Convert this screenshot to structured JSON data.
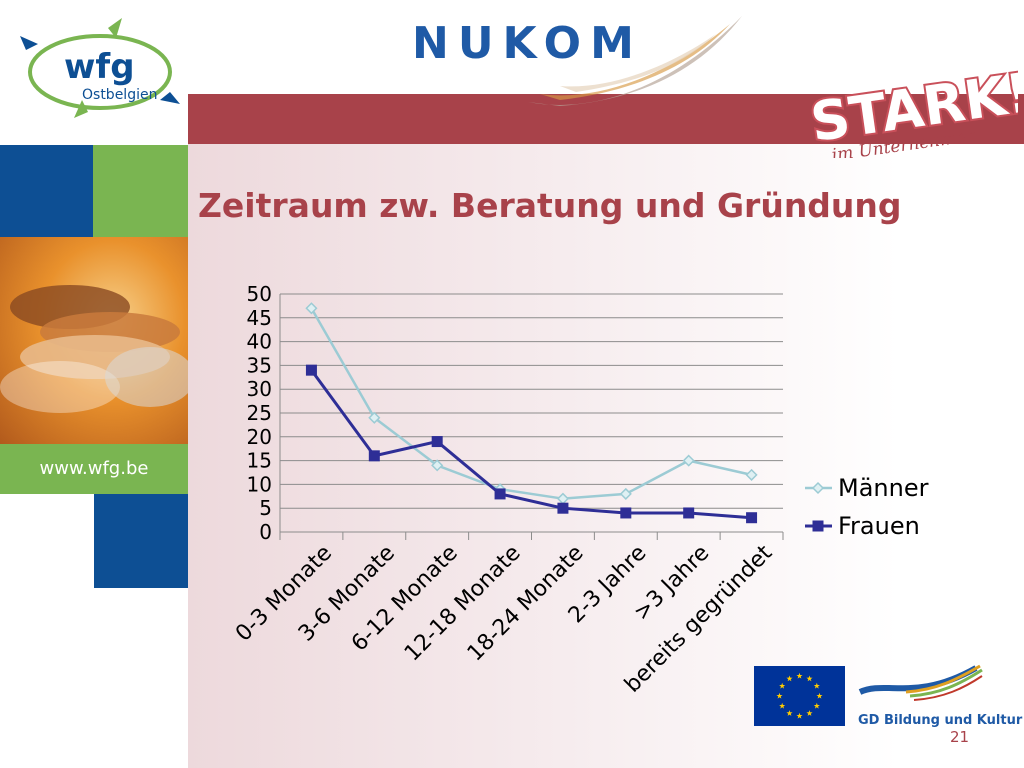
{
  "header": {
    "brand": "NUKOM",
    "logo_left": {
      "name": "wfg",
      "sub": "Ostbelgien"
    },
    "logo_right": {
      "main": "STARK!",
      "sub": "im Unternehmen"
    }
  },
  "sidebar": {
    "url": "www.wfg.be"
  },
  "slide": {
    "title": "Zeitraum zw. Beratung und Gründung",
    "page_number": "21"
  },
  "footer": {
    "partner": "GD Bildung und Kultur"
  },
  "colors": {
    "accent_red": "#a8424a",
    "brand_blue": "#1f5aa6",
    "block_blue": "#0d4f94",
    "block_green": "#7ab551",
    "series_maenner": "#9ccbd4",
    "series_frauen": "#2e2e96"
  },
  "chart_data": {
    "type": "line",
    "title": "",
    "xlabel": "",
    "ylabel": "",
    "ylim": [
      0,
      50
    ],
    "yticks": [
      0,
      5,
      10,
      15,
      20,
      25,
      30,
      35,
      40,
      45,
      50
    ],
    "grid": true,
    "legend": "right",
    "categories": [
      "0-3 Monate",
      "3-6 Monate",
      "6-12 Monate",
      "12-18 Monate",
      "18-24 Monate",
      "2-3 Jahre",
      ">3 Jahre",
      "bereits gegründet"
    ],
    "series": [
      {
        "name": "Männer",
        "values": [
          47,
          24,
          14,
          9,
          7,
          8,
          15,
          12
        ],
        "marker": "diamond"
      },
      {
        "name": "Frauen",
        "values": [
          34,
          16,
          19,
          8,
          5,
          4,
          4,
          3
        ],
        "marker": "square"
      }
    ]
  }
}
